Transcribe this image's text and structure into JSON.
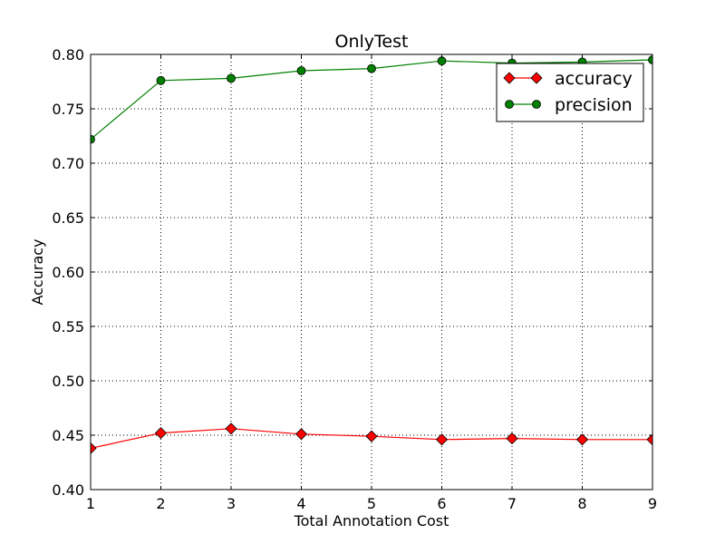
{
  "chart_data": {
    "type": "line",
    "title": "OnlyTest",
    "xlabel": "Total Annotation Cost",
    "ylabel": "Accuracy",
    "x": [
      1,
      2,
      3,
      4,
      5,
      6,
      7,
      8,
      9
    ],
    "xlim": [
      1,
      9
    ],
    "ylim": [
      0.4,
      0.8
    ],
    "x_ticks": [
      "1",
      "2",
      "3",
      "4",
      "5",
      "6",
      "7",
      "8",
      "9"
    ],
    "y_ticks": [
      "0.40",
      "0.45",
      "0.50",
      "0.55",
      "0.60",
      "0.65",
      "0.70",
      "0.75",
      "0.80"
    ],
    "grid": true,
    "grid_style": "dotted",
    "legend_position": "top-right",
    "series": [
      {
        "name": "accuracy",
        "color": "#ff0000",
        "marker": "diamond",
        "values": [
          0.438,
          0.452,
          0.456,
          0.451,
          0.449,
          0.446,
          0.447,
          0.446,
          0.446
        ]
      },
      {
        "name": "precision",
        "color": "#008000",
        "marker": "circle",
        "values": [
          0.722,
          0.776,
          0.778,
          0.785,
          0.787,
          0.794,
          0.792,
          0.793,
          0.795
        ]
      }
    ]
  }
}
